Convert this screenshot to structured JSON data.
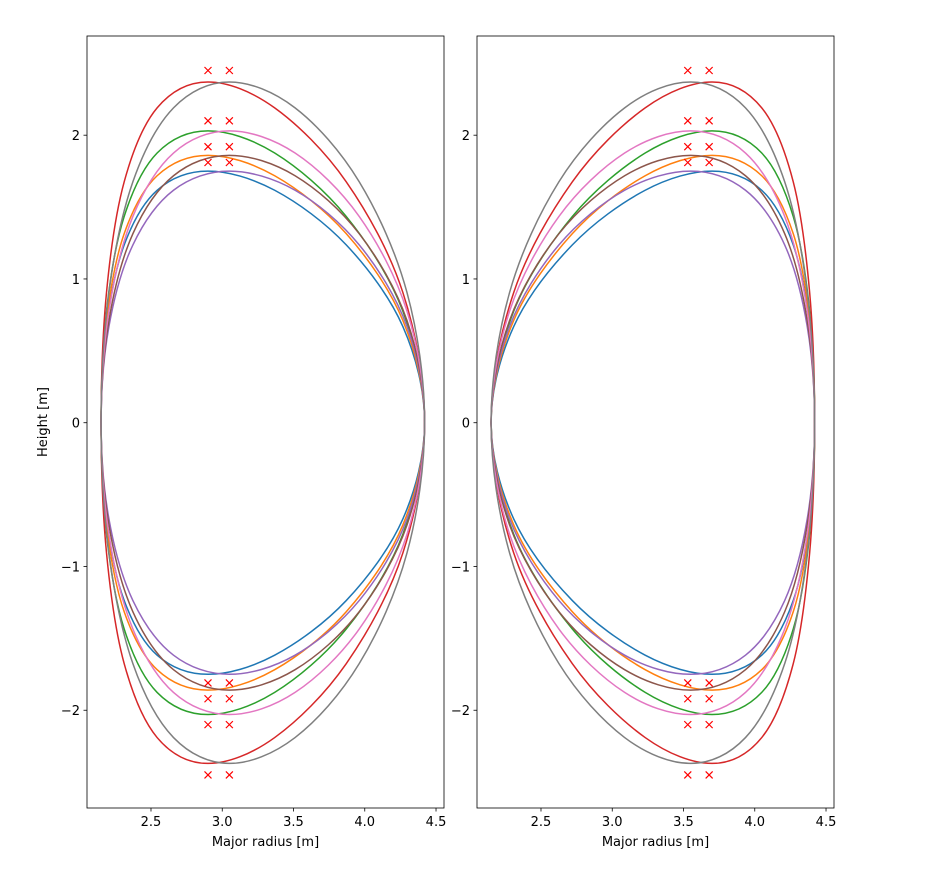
{
  "chart_data": [
    {
      "type": "line",
      "xlabel": "Major radius [m]",
      "ylabel": "Height [m]",
      "xlim": [
        2.051,
        4.556
      ],
      "ylim": [
        -2.68,
        2.69
      ],
      "xticks": [
        2.5,
        {
          "value": 3.0,
          "label": "3.0"
        },
        3.5,
        {
          "value": 4.0,
          "label": "4.0"
        },
        4.5
      ],
      "yticks": [
        {
          "value": -2,
          "label": "−2"
        },
        {
          "value": -1,
          "label": "−1"
        },
        0,
        1,
        2
      ],
      "series": [
        {
          "color": "#1f77b4",
          "x": [
            4.42,
            4.267,
            3.87,
            3.368,
            2.9,
            2.543,
            2.312,
            2.188,
            2.15,
            2.188,
            2.312,
            2.543,
            2.9,
            3.368,
            3.87,
            4.267
          ],
          "y": [
            0,
            0.67,
            1.237,
            1.617,
            1.75,
            1.617,
            1.237,
            0.67,
            0,
            -0.67,
            -1.237,
            -1.617,
            -1.75,
            -1.617,
            -1.237,
            -0.67
          ]
        },
        {
          "color": "#ff7f0e",
          "x": [
            4.42,
            4.267,
            3.87,
            3.368,
            2.9,
            2.543,
            2.312,
            2.188,
            2.15,
            2.188,
            2.312,
            2.543,
            2.9,
            3.368,
            3.87,
            4.267
          ],
          "y": [
            0,
            0.712,
            1.315,
            1.718,
            1.86,
            1.718,
            1.315,
            0.712,
            0,
            -0.712,
            -1.315,
            -1.718,
            -1.86,
            -1.718,
            -1.315,
            -0.712
          ]
        },
        {
          "color": "#2ca02c",
          "x": [
            4.42,
            4.267,
            3.87,
            3.368,
            2.9,
            2.543,
            2.312,
            2.188,
            2.15,
            2.188,
            2.312,
            2.543,
            2.9,
            3.368,
            3.87,
            4.267
          ],
          "y": [
            0,
            0.777,
            1.435,
            1.876,
            2.03,
            1.876,
            1.435,
            0.777,
            0,
            -0.777,
            -1.435,
            -1.876,
            -2.03,
            -1.876,
            -1.435,
            -0.777
          ]
        },
        {
          "color": "#d62728",
          "x": [
            4.42,
            4.267,
            3.87,
            3.368,
            2.9,
            2.543,
            2.312,
            2.188,
            2.15,
            2.188,
            2.312,
            2.543,
            2.9,
            3.368,
            3.87,
            4.267
          ],
          "y": [
            0,
            0.907,
            1.676,
            2.19,
            2.37,
            2.19,
            1.676,
            0.907,
            0,
            -0.907,
            -1.676,
            -2.19,
            -2.37,
            -2.19,
            -1.676,
            -0.907
          ]
        },
        {
          "color": "#9467bd",
          "x": [
            4.42,
            4.296,
            3.961,
            3.511,
            3.05,
            2.658,
            2.373,
            2.205,
            2.15,
            2.205,
            2.373,
            2.658,
            3.05,
            3.511,
            3.961,
            4.296
          ],
          "y": [
            0,
            0.67,
            1.237,
            1.617,
            1.75,
            1.617,
            1.237,
            0.67,
            0,
            -0.67,
            -1.237,
            -1.617,
            -1.75,
            -1.617,
            -1.237,
            -0.67
          ]
        },
        {
          "color": "#8c564b",
          "x": [
            4.42,
            4.296,
            3.961,
            3.511,
            3.05,
            2.658,
            2.373,
            2.205,
            2.15,
            2.205,
            2.373,
            2.658,
            3.05,
            3.511,
            3.961,
            4.296
          ],
          "y": [
            0,
            0.712,
            1.315,
            1.718,
            1.86,
            1.718,
            1.315,
            0.712,
            0,
            -0.712,
            -1.315,
            -1.718,
            -1.86,
            -1.718,
            -1.315,
            -0.712
          ]
        },
        {
          "color": "#e377c2",
          "x": [
            4.42,
            4.296,
            3.961,
            3.511,
            3.05,
            2.658,
            2.373,
            2.205,
            2.15,
            2.205,
            2.373,
            2.658,
            3.05,
            3.511,
            3.961,
            4.296
          ],
          "y": [
            0,
            0.777,
            1.435,
            1.876,
            2.03,
            1.876,
            1.435,
            0.777,
            0,
            -0.777,
            -1.435,
            -1.876,
            -2.03,
            -1.876,
            -1.435,
            -0.777
          ]
        },
        {
          "color": "#7f7f7f",
          "x": [
            4.42,
            4.296,
            3.961,
            3.511,
            3.05,
            2.658,
            2.373,
            2.205,
            2.15,
            2.205,
            2.373,
            2.658,
            3.05,
            3.511,
            3.961,
            4.296
          ],
          "y": [
            0,
            0.907,
            1.676,
            2.19,
            2.37,
            2.19,
            1.676,
            0.907,
            0,
            -0.907,
            -1.676,
            -2.19,
            -2.37,
            -2.19,
            -1.676,
            -0.907
          ]
        }
      ],
      "markers": {
        "color": "#ff0000",
        "x": [
          2.9,
          3.05,
          2.9,
          3.05,
          2.9,
          3.05,
          2.9,
          3.05,
          2.9,
          3.05,
          2.9,
          3.05,
          2.9,
          3.05,
          2.9,
          3.05
        ],
        "y": [
          2.45,
          2.45,
          2.1,
          2.1,
          1.92,
          1.92,
          1.81,
          1.81,
          -1.81,
          -1.81,
          -1.92,
          -1.92,
          -2.1,
          -2.1,
          -2.45,
          -2.45
        ]
      }
    },
    {
      "type": "line",
      "xlabel": "Major radius [m]",
      "xlim": [
        2.051,
        4.556
      ],
      "ylim": [
        -2.68,
        2.69
      ],
      "xticks": [
        2.5,
        {
          "value": 3.0,
          "label": "3.0"
        },
        3.5,
        {
          "value": 4.0,
          "label": "4.0"
        },
        4.5
      ],
      "yticks": [
        {
          "value": -2,
          "label": "−2"
        },
        {
          "value": -1,
          "label": "−1"
        },
        0,
        1,
        2
      ],
      "series": [
        {
          "color": "#1f77b4",
          "x": [
            4.42,
            4.385,
            4.27,
            4.049,
            3.7,
            3.231,
            2.72,
            2.309,
            2.15,
            2.309,
            2.72,
            3.231,
            3.7,
            4.049,
            4.27,
            4.385
          ],
          "y": [
            0,
            0.67,
            1.237,
            1.617,
            1.75,
            1.617,
            1.237,
            0.67,
            0,
            -0.67,
            -1.237,
            -1.617,
            -1.75,
            -1.617,
            -1.237,
            -0.67
          ]
        },
        {
          "color": "#ff7f0e",
          "x": [
            4.42,
            4.385,
            4.27,
            4.049,
            3.7,
            3.231,
            2.72,
            2.309,
            2.15,
            2.309,
            2.72,
            3.231,
            3.7,
            4.049,
            4.27,
            4.385
          ],
          "y": [
            0,
            0.712,
            1.315,
            1.718,
            1.86,
            1.718,
            1.315,
            0.712,
            0,
            -0.712,
            -1.315,
            -1.718,
            -1.86,
            -1.718,
            -1.315,
            -0.712
          ]
        },
        {
          "color": "#2ca02c",
          "x": [
            4.42,
            4.385,
            4.27,
            4.049,
            3.7,
            3.231,
            2.72,
            2.309,
            2.15,
            2.309,
            2.72,
            3.231,
            3.7,
            4.049,
            4.27,
            4.385
          ],
          "y": [
            0,
            0.777,
            1.435,
            1.876,
            2.03,
            1.876,
            1.435,
            0.777,
            0,
            -0.777,
            -1.435,
            -1.876,
            -2.03,
            -1.876,
            -1.435,
            -0.777
          ]
        },
        {
          "color": "#d62728",
          "x": [
            4.42,
            4.385,
            4.27,
            4.049,
            3.7,
            3.231,
            2.72,
            2.309,
            2.15,
            2.309,
            2.72,
            3.231,
            3.7,
            4.049,
            4.27,
            4.385
          ],
          "y": [
            0,
            0.907,
            1.676,
            2.19,
            2.37,
            2.19,
            1.676,
            0.907,
            0,
            -0.907,
            -1.676,
            -2.19,
            -2.37,
            -2.19,
            -1.676,
            -0.907
          ]
        },
        {
          "color": "#9467bd",
          "x": [
            4.42,
            4.368,
            4.21,
            3.935,
            3.55,
            3.087,
            2.626,
            2.28,
            2.15,
            2.28,
            2.626,
            3.087,
            3.55,
            3.935,
            4.21,
            4.368
          ],
          "y": [
            0,
            0.67,
            1.237,
            1.617,
            1.75,
            1.617,
            1.237,
            0.67,
            0,
            -0.67,
            -1.237,
            -1.617,
            -1.75,
            -1.617,
            -1.237,
            -0.67
          ]
        },
        {
          "color": "#8c564b",
          "x": [
            4.42,
            4.368,
            4.21,
            3.935,
            3.55,
            3.087,
            2.626,
            2.28,
            2.15,
            2.28,
            2.626,
            3.087,
            3.55,
            3.935,
            4.21,
            4.368
          ],
          "y": [
            0,
            0.712,
            1.315,
            1.718,
            1.86,
            1.718,
            1.315,
            0.712,
            0,
            -0.712,
            -1.315,
            -1.718,
            -1.86,
            -1.718,
            -1.315,
            -0.712
          ]
        },
        {
          "color": "#e377c2",
          "x": [
            4.42,
            4.368,
            4.21,
            3.935,
            3.55,
            3.087,
            2.626,
            2.28,
            2.15,
            2.28,
            2.626,
            3.087,
            3.55,
            3.935,
            4.21,
            4.368
          ],
          "y": [
            0,
            0.777,
            1.435,
            1.876,
            2.03,
            1.876,
            1.435,
            0.777,
            0,
            -0.777,
            -1.435,
            -1.876,
            -2.03,
            -1.876,
            -1.435,
            -0.777
          ]
        },
        {
          "color": "#7f7f7f",
          "x": [
            4.42,
            4.368,
            4.21,
            3.935,
            3.55,
            3.087,
            2.626,
            2.28,
            2.15,
            2.28,
            2.626,
            3.087,
            3.55,
            3.935,
            4.21,
            4.368
          ],
          "y": [
            0,
            0.907,
            1.676,
            2.19,
            2.37,
            2.19,
            1.676,
            0.907,
            0,
            -0.907,
            -1.676,
            -2.19,
            -2.37,
            -2.19,
            -1.676,
            -0.907
          ]
        }
      ],
      "markers": {
        "color": "#ff0000",
        "x": [
          3.53,
          3.68,
          3.53,
          3.68,
          3.53,
          3.68,
          3.53,
          3.68,
          3.53,
          3.68,
          3.53,
          3.68,
          3.53,
          3.68,
          3.53,
          3.68
        ],
        "y": [
          2.45,
          2.45,
          2.1,
          2.1,
          1.92,
          1.92,
          1.81,
          1.81,
          -1.81,
          -1.81,
          -1.92,
          -1.92,
          -2.1,
          -2.1,
          -2.45,
          -2.45
        ]
      }
    }
  ]
}
